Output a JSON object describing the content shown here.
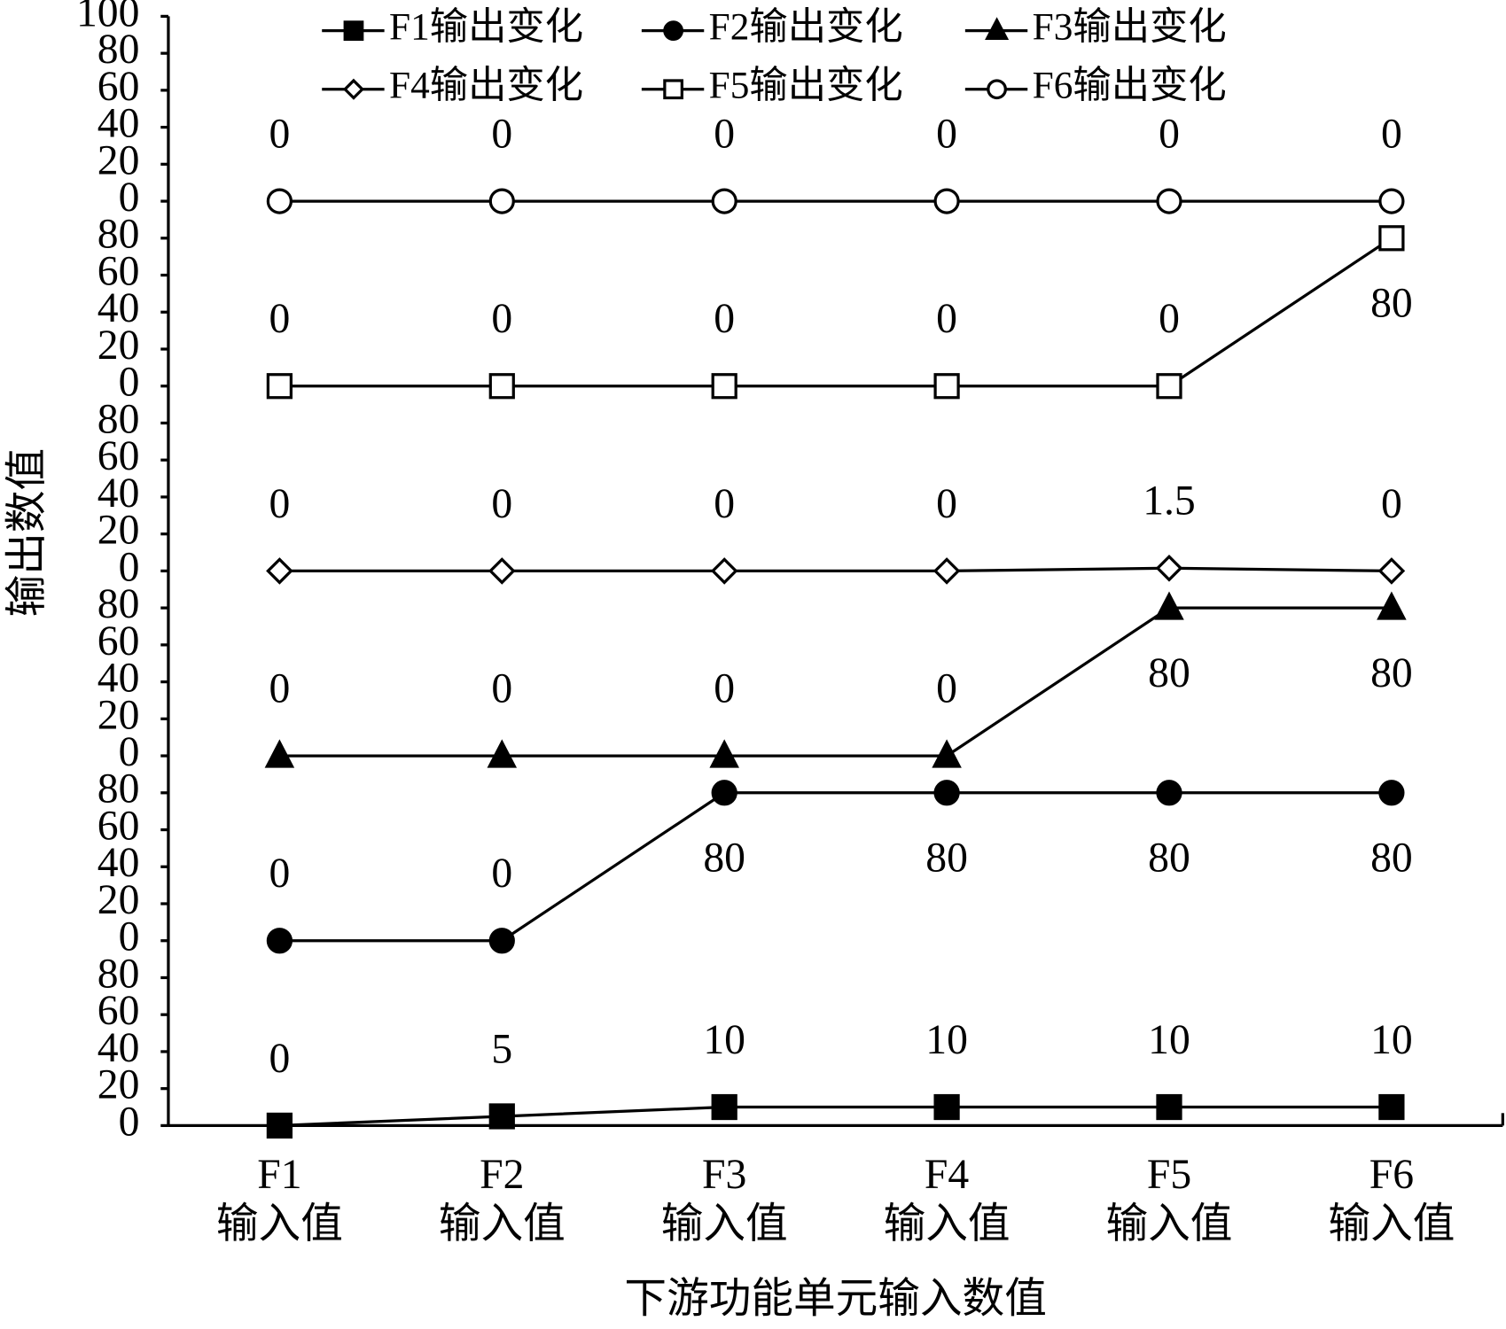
{
  "chart_data": {
    "type": "line",
    "y_label": "输出数值",
    "x_label": "下游功能单元输入数值",
    "categories": [
      [
        "F1",
        "输入值"
      ],
      [
        "F2",
        "输入值"
      ],
      [
        "F3",
        "输入值"
      ],
      [
        "F4",
        "输入值"
      ],
      [
        "F5",
        "输入值"
      ],
      [
        "F6",
        "输入值"
      ]
    ],
    "series": [
      {
        "name": "F1输出变化",
        "color": "#000000",
        "marker": "square-filled",
        "values": [
          0,
          5,
          10,
          10,
          10,
          10
        ]
      },
      {
        "name": "F2输出变化",
        "color": "#000000",
        "marker": "circle-filled",
        "values": [
          0,
          0,
          80,
          80,
          80,
          80
        ]
      },
      {
        "name": "F3输出变化",
        "color": "#000000",
        "marker": "triangle-filled",
        "values": [
          0,
          0,
          0,
          0,
          80,
          80
        ]
      },
      {
        "name": "F4输出变化",
        "color": "#000000",
        "marker": "diamond-open",
        "values": [
          0,
          0,
          0,
          0,
          1.5,
          0
        ]
      },
      {
        "name": "F5输出变化",
        "color": "#000000",
        "marker": "square-open",
        "values": [
          0,
          0,
          0,
          0,
          0,
          80
        ]
      },
      {
        "name": "F6输出变化",
        "color": "#000000",
        "marker": "circle-open",
        "values": [
          0,
          0,
          0,
          0,
          0,
          0
        ]
      }
    ],
    "ylim": [
      0,
      600
    ],
    "yticks": [
      0,
      20,
      40,
      60,
      80,
      {
        "value": 100,
        "label": "0"
      },
      {
        "value": 120,
        "label": "20"
      },
      {
        "value": 140,
        "label": "40"
      },
      {
        "value": 160,
        "label": "60"
      },
      {
        "value": 180,
        "label": "80"
      },
      {
        "value": 200,
        "label": "0"
      },
      {
        "value": 220,
        "label": "20"
      },
      {
        "value": 240,
        "label": "40"
      },
      {
        "value": 260,
        "label": "60"
      },
      {
        "value": 280,
        "label": "80"
      },
      {
        "value": 300,
        "label": "0"
      },
      {
        "value": 320,
        "label": "20"
      },
      {
        "value": 340,
        "label": "40"
      },
      {
        "value": 360,
        "label": "60"
      },
      {
        "value": 380,
        "label": "80"
      },
      {
        "value": 400,
        "label": "0"
      },
      {
        "value": 420,
        "label": "20"
      },
      {
        "value": 440,
        "label": "40"
      },
      {
        "value": 460,
        "label": "60"
      },
      {
        "value": 480,
        "label": "80"
      },
      {
        "value": 500,
        "label": "0"
      },
      {
        "value": 520,
        "label": "20"
      },
      {
        "value": 540,
        "label": "40"
      },
      {
        "value": 560,
        "label": "60"
      },
      {
        "value": 580,
        "label": "80"
      },
      {
        "value": 600,
        "label": "100"
      }
    ],
    "legend": "top"
  }
}
